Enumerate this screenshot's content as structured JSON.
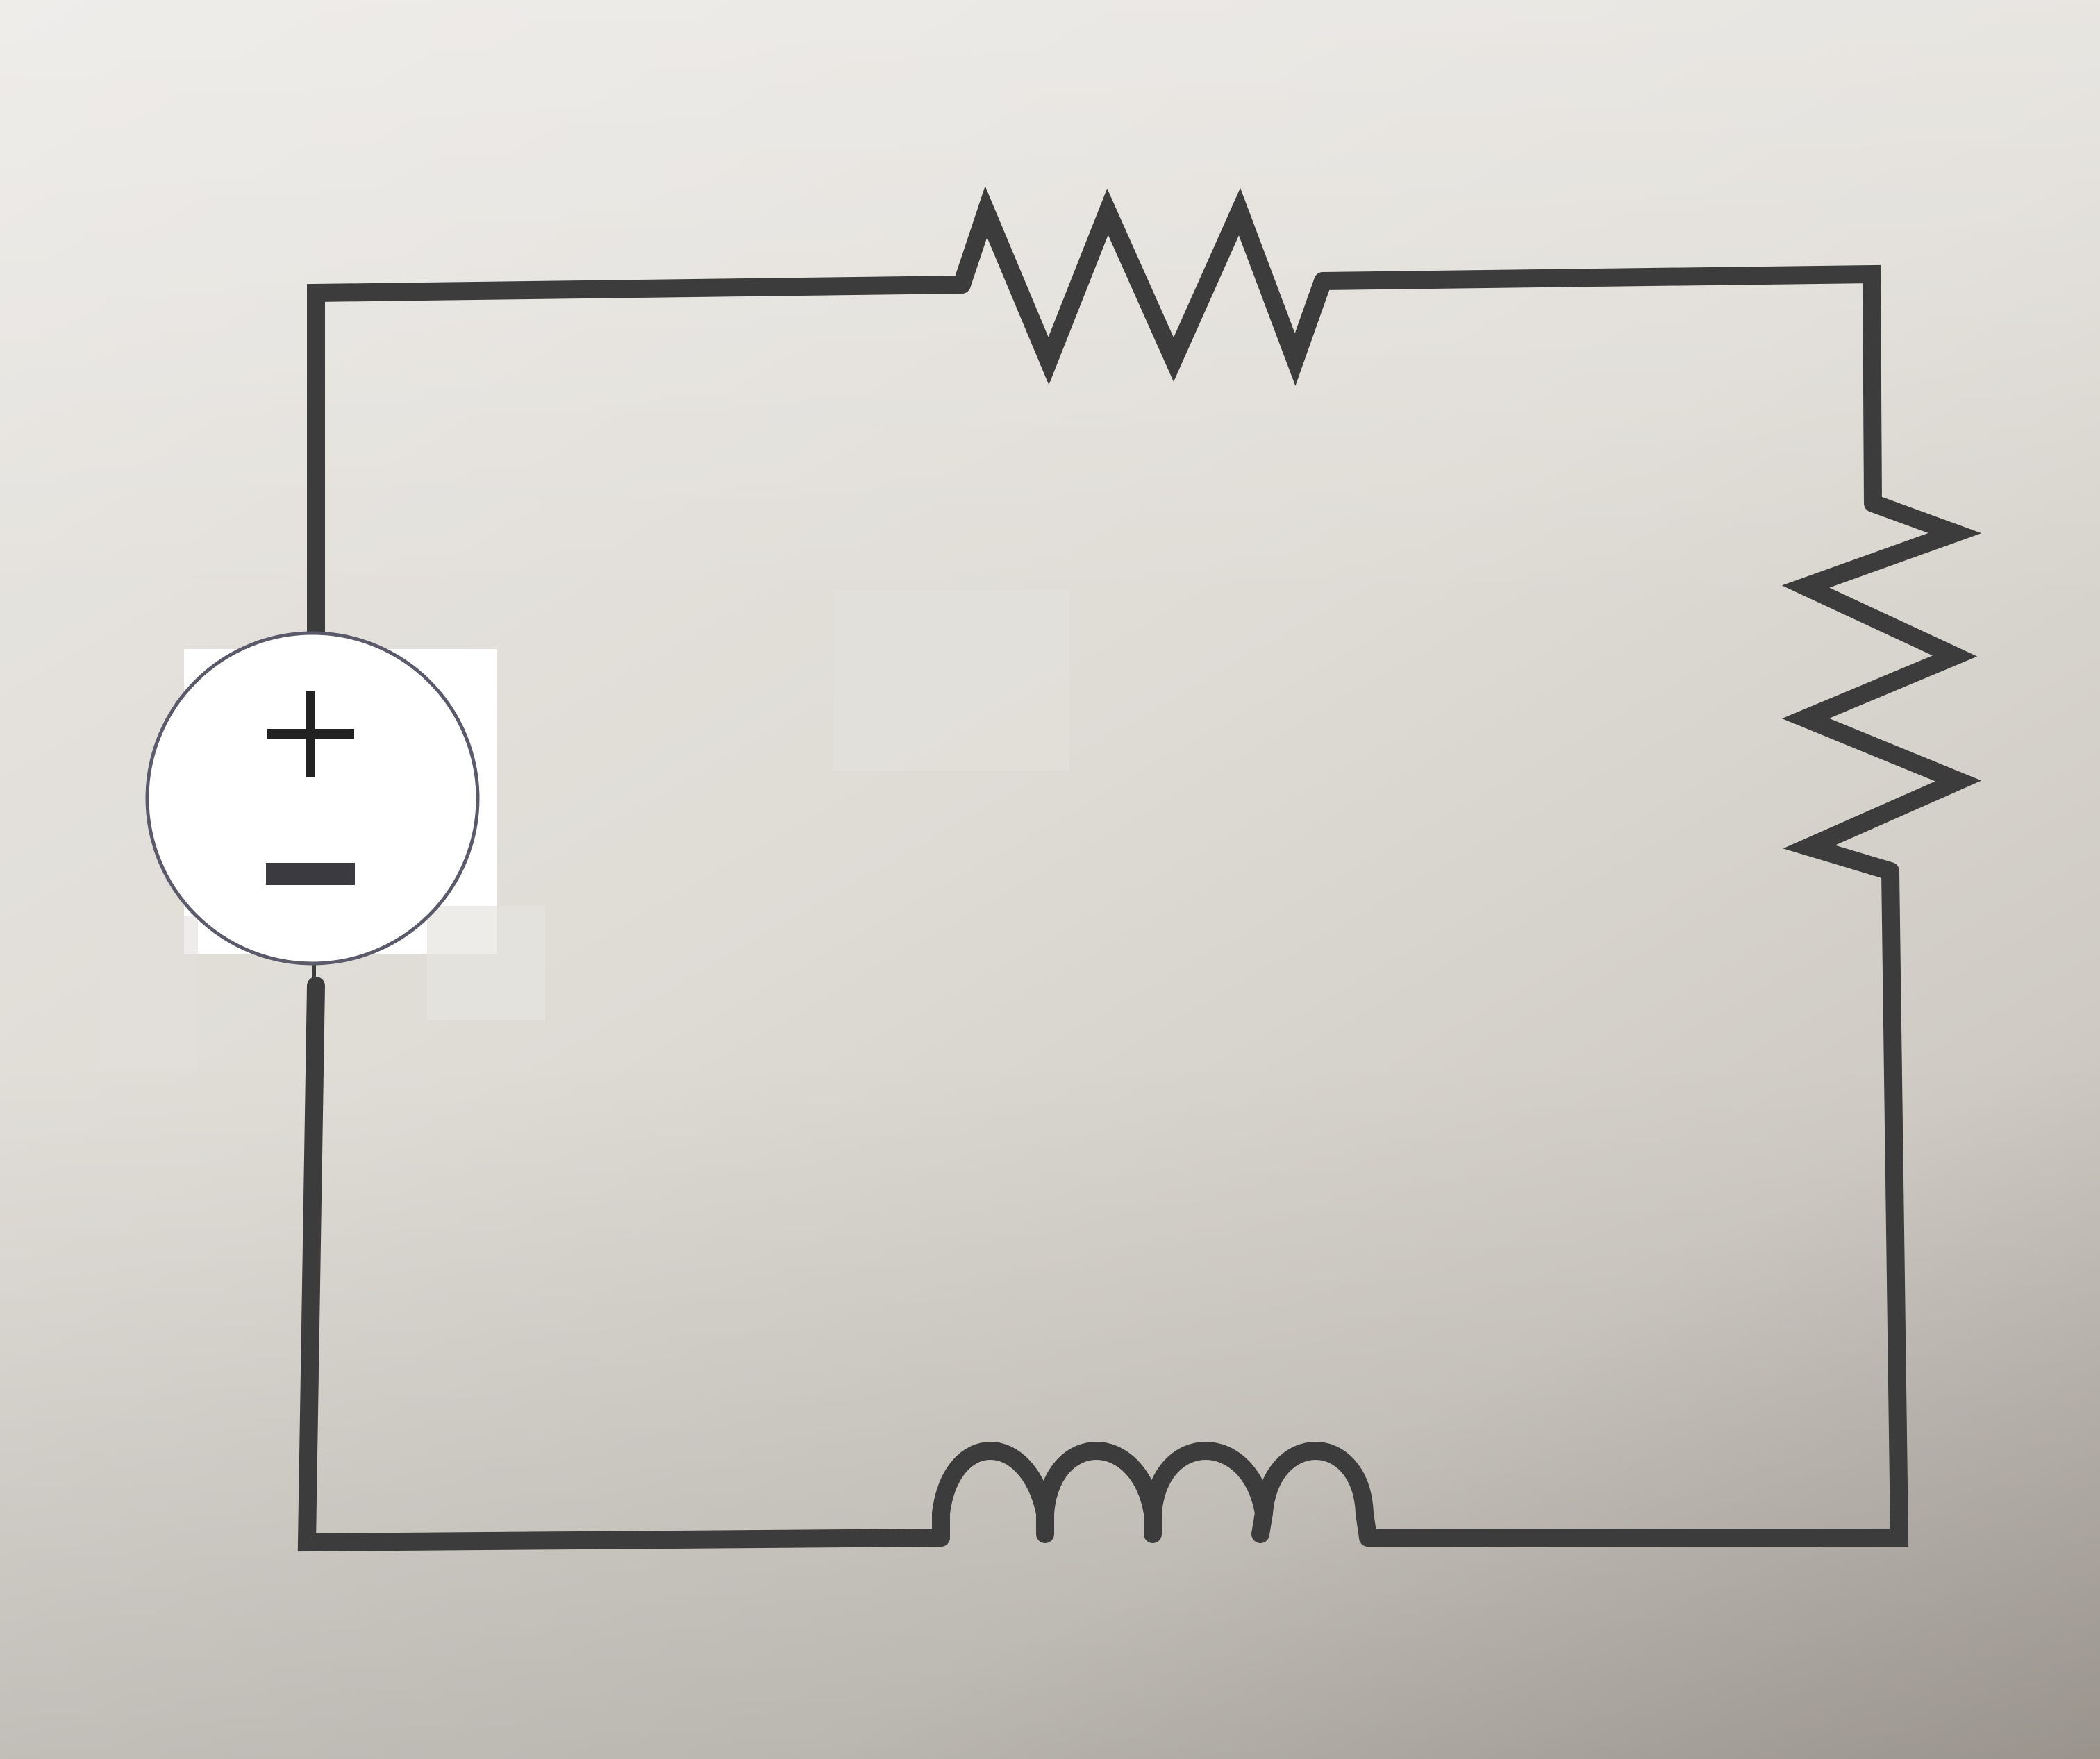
{
  "diagram": {
    "type": "series-circuit",
    "components": [
      {
        "name": "voltage-source",
        "symbol": "circle-with-polarity",
        "positive_label": "+",
        "negative_label": "−"
      },
      {
        "name": "resistor-top",
        "symbol": "zigzag"
      },
      {
        "name": "resistor-right",
        "symbol": "zigzag"
      },
      {
        "name": "inductor-bottom",
        "symbol": "coil"
      }
    ],
    "colors": {
      "wire": "#3c3c3c",
      "paper": "#dfdcd6",
      "source_fill": "#ffffff",
      "source_outline": "#5a5a6a",
      "polarity": "#222222"
    }
  }
}
